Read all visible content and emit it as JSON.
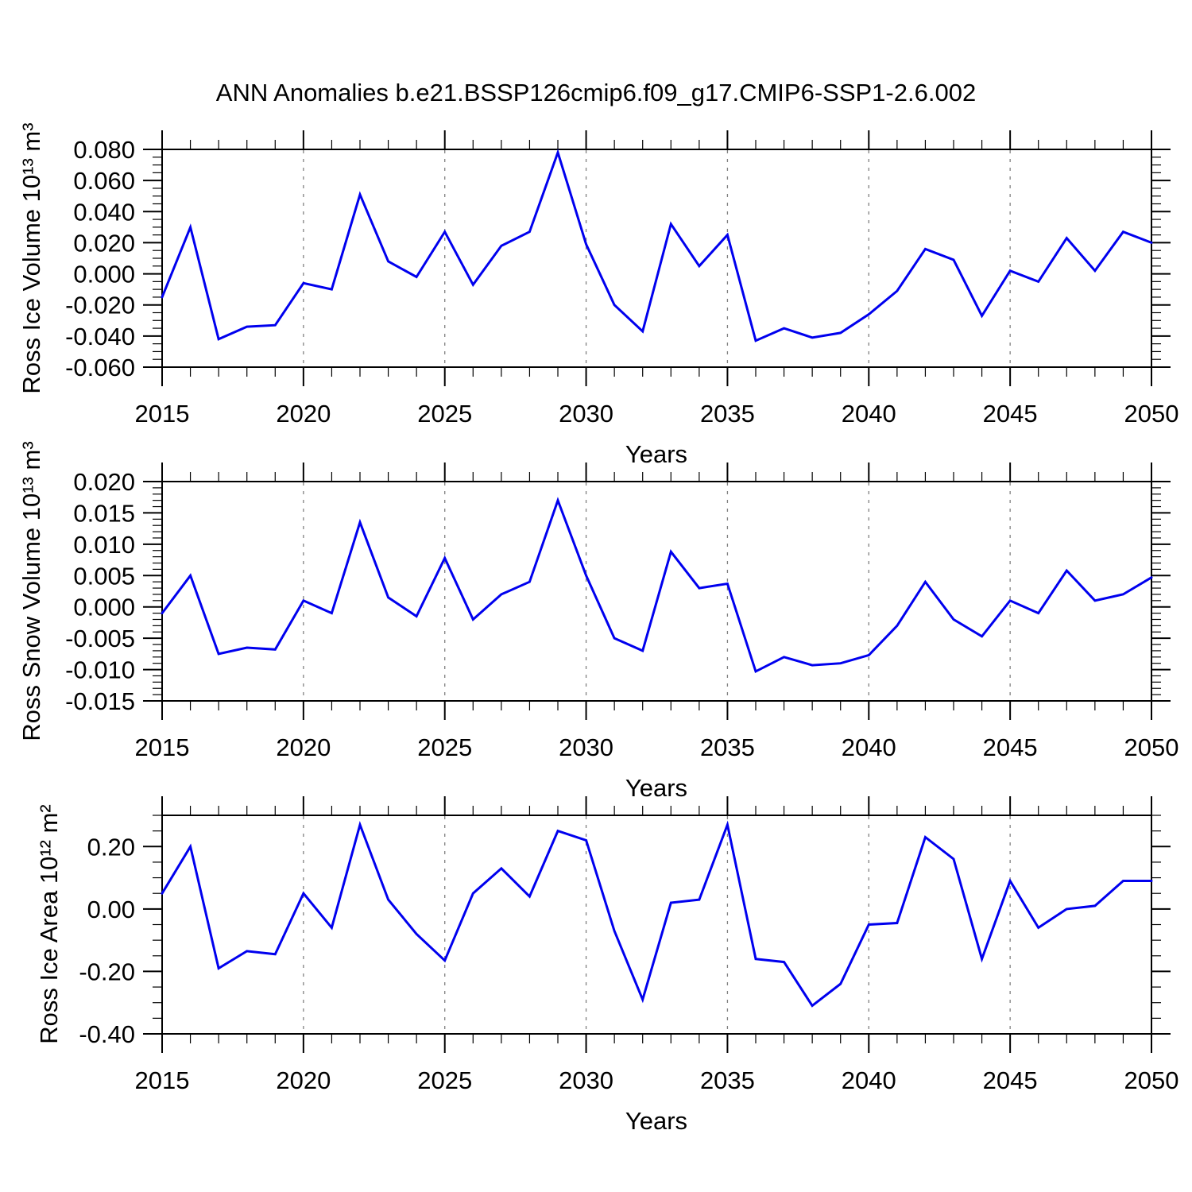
{
  "title": "ANN Anomalies b.e21.BSSP126cmip6.f09_g17.CMIP6-SSP1-2.6.002",
  "colors": {
    "line": "#0000ee",
    "axis": "#000000",
    "grid": "#808080",
    "background": "#ffffff",
    "text": "#000000"
  },
  "x_axis": {
    "label": "Years",
    "range": [
      2015,
      2050
    ],
    "tick_years": [
      2015,
      2020,
      2025,
      2030,
      2035,
      2040,
      2045,
      2050
    ],
    "tick_labels": [
      "2015",
      "2020",
      "2025",
      "2030",
      "2035",
      "2040",
      "2045",
      "2050"
    ],
    "minor_step": 1,
    "gridline_years": [
      2020,
      2025,
      2030,
      2035,
      2040,
      2045
    ],
    "years": [
      2015,
      2016,
      2017,
      2018,
      2019,
      2020,
      2021,
      2022,
      2023,
      2024,
      2025,
      2026,
      2027,
      2028,
      2029,
      2030,
      2031,
      2032,
      2033,
      2034,
      2035,
      2036,
      2037,
      2038,
      2039,
      2040,
      2041,
      2042,
      2043,
      2044,
      2045,
      2046,
      2047,
      2048,
      2049,
      2050
    ]
  },
  "chart_data": [
    {
      "id": "ross-ice-volume",
      "type": "line",
      "ylabel": "Ross Ice Volume 10¹³ m³",
      "ylim": [
        -0.06,
        0.08
      ],
      "ytick_values": [
        0.08,
        0.06,
        0.04,
        0.02,
        0.0,
        -0.02,
        -0.04,
        -0.06
      ],
      "ytick_labels": [
        "0.080",
        "0.060",
        "0.040",
        "0.020",
        "0.000",
        "-0.020",
        "-0.040",
        "-0.060"
      ],
      "yminor_step": 0.005,
      "values": [
        -0.015,
        0.03,
        -0.042,
        -0.034,
        -0.033,
        -0.006,
        -0.01,
        0.051,
        0.008,
        -0.002,
        0.027,
        -0.007,
        0.018,
        0.027,
        0.078,
        0.019,
        -0.02,
        -0.037,
        0.032,
        0.005,
        0.025,
        -0.043,
        -0.035,
        -0.041,
        -0.038,
        -0.026,
        -0.011,
        0.016,
        0.009,
        -0.027,
        0.002,
        -0.005,
        0.023,
        0.002,
        0.027,
        0.02
      ]
    },
    {
      "id": "ross-snow-volume",
      "type": "line",
      "ylabel": "Ross Snow Volume 10¹³ m³",
      "ylim": [
        -0.015,
        0.02
      ],
      "ytick_values": [
        0.02,
        0.015,
        0.01,
        0.005,
        0.0,
        -0.005,
        -0.01,
        -0.015
      ],
      "ytick_labels": [
        "0.020",
        "0.015",
        "0.010",
        "0.005",
        "0.000",
        "-0.005",
        "-0.010",
        "-0.015"
      ],
      "yminor_step": 0.001,
      "values": [
        -0.001,
        0.005,
        -0.0075,
        -0.0065,
        -0.0068,
        0.001,
        -0.001,
        0.0135,
        0.0015,
        -0.0015,
        0.0078,
        -0.002,
        0.002,
        0.004,
        0.017,
        0.005,
        -0.005,
        -0.007,
        0.0088,
        0.003,
        0.0037,
        -0.0103,
        -0.008,
        -0.0093,
        -0.009,
        -0.0077,
        -0.003,
        0.004,
        -0.002,
        -0.0047,
        0.001,
        -0.001,
        0.0058,
        0.001,
        0.002,
        0.0047
      ]
    },
    {
      "id": "ross-ice-area",
      "type": "line",
      "ylabel": "Ross Ice Area 10¹² m²",
      "ylim": [
        -0.4,
        0.3
      ],
      "ytick_values": [
        0.2,
        0.0,
        -0.2,
        -0.4
      ],
      "ytick_labels": [
        "0.20",
        "0.00",
        "-0.20",
        "-0.40"
      ],
      "yminor_step": 0.05,
      "values": [
        0.05,
        0.2,
        -0.19,
        -0.135,
        -0.145,
        0.05,
        -0.06,
        0.27,
        0.03,
        -0.08,
        -0.165,
        0.05,
        0.13,
        0.04,
        0.25,
        0.22,
        -0.07,
        -0.29,
        0.02,
        0.03,
        0.27,
        -0.16,
        -0.17,
        -0.31,
        -0.24,
        -0.05,
        -0.045,
        0.23,
        0.16,
        -0.16,
        0.09,
        -0.06,
        0.0,
        0.01,
        0.09,
        0.09
      ]
    }
  ]
}
